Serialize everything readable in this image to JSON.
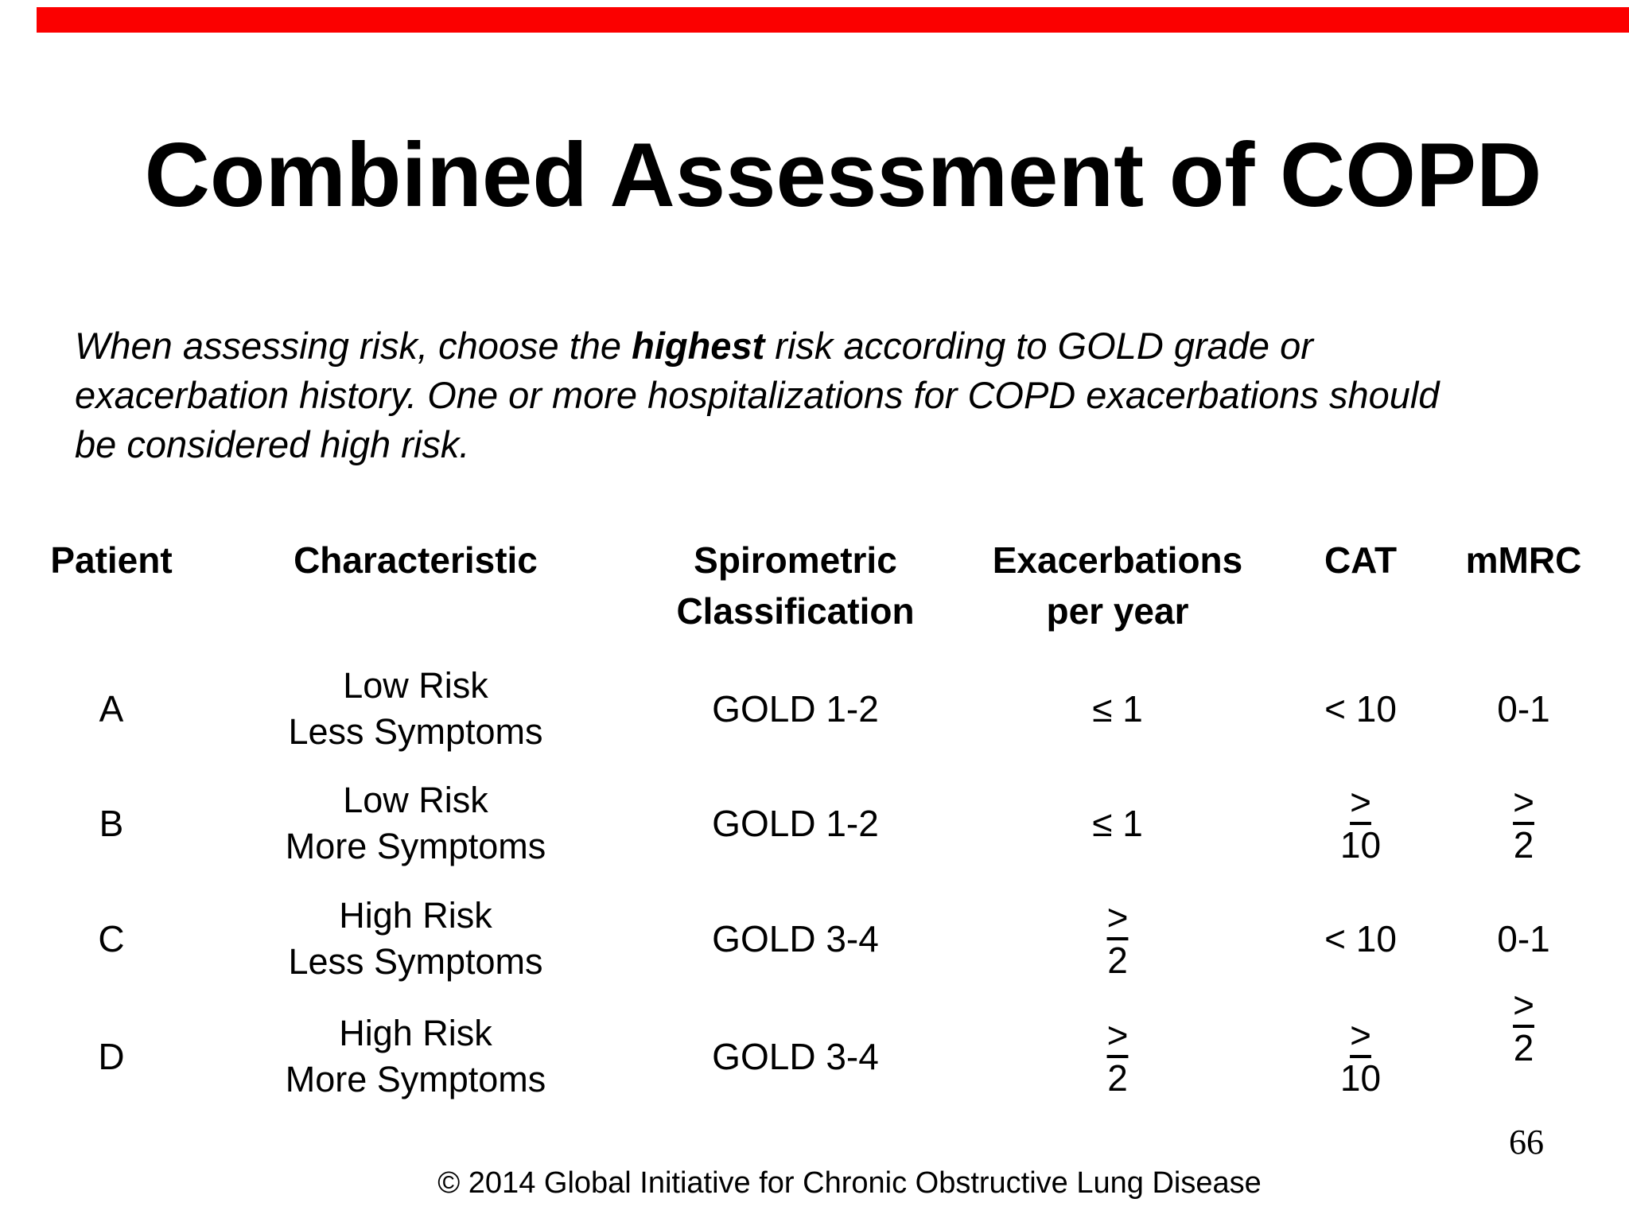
{
  "slide": {
    "accent_color": "#fb0000",
    "title": "Combined Assessment of COPD",
    "intro": {
      "line1_pre": "When assessing risk, choose the ",
      "line1_bold": "highest",
      "line1_post": " risk according to GOLD grade or",
      "line2": "exacerbation history. One or more hospitalizations for COPD exacerbations should",
      "line3": "be considered high risk."
    },
    "page_number": "66",
    "footer": "© 2014 Global Initiative for Chronic Obstructive Lung Disease"
  },
  "table": {
    "headers": {
      "patient": "Patient",
      "characteristic": "Characteristic",
      "spirometric_line1": "Spirometric",
      "spirometric_line2": "Classification",
      "exacerbations_line1": "Exacerbations",
      "exacerbations_line2": "per year",
      "cat": "CAT",
      "mmrc": "mMRC"
    },
    "rows": [
      {
        "patient": "A",
        "characteristic_line1": "Low Risk",
        "characteristic_line2": "Less Symptoms",
        "spirometric": "GOLD 1-2",
        "exacerbations_per_year": "≤ 1",
        "cat": "< 10",
        "mmrc": "0-1"
      },
      {
        "patient": "B",
        "characteristic_line1": "Low Risk",
        "characteristic_line2": "More Symptoms",
        "spirometric": "GOLD 1-2",
        "exacerbations_per_year": "≤ 1",
        "cat": "≥ 10",
        "mmrc": "≥ 2"
      },
      {
        "patient": "C",
        "characteristic_line1": "High Risk",
        "characteristic_line2": "Less Symptoms",
        "spirometric": "GOLD 3-4",
        "exacerbations_per_year": "≥ 2",
        "cat": "< 10",
        "mmrc": "0-1"
      },
      {
        "patient": "D",
        "characteristic_line1": "High Risk",
        "characteristic_line2": "More Symptoms",
        "spirometric": "GOLD 3-4",
        "exacerbations_per_year": "≥ 2",
        "cat": "≥ 10",
        "mmrc": "≥ 2"
      }
    ]
  }
}
